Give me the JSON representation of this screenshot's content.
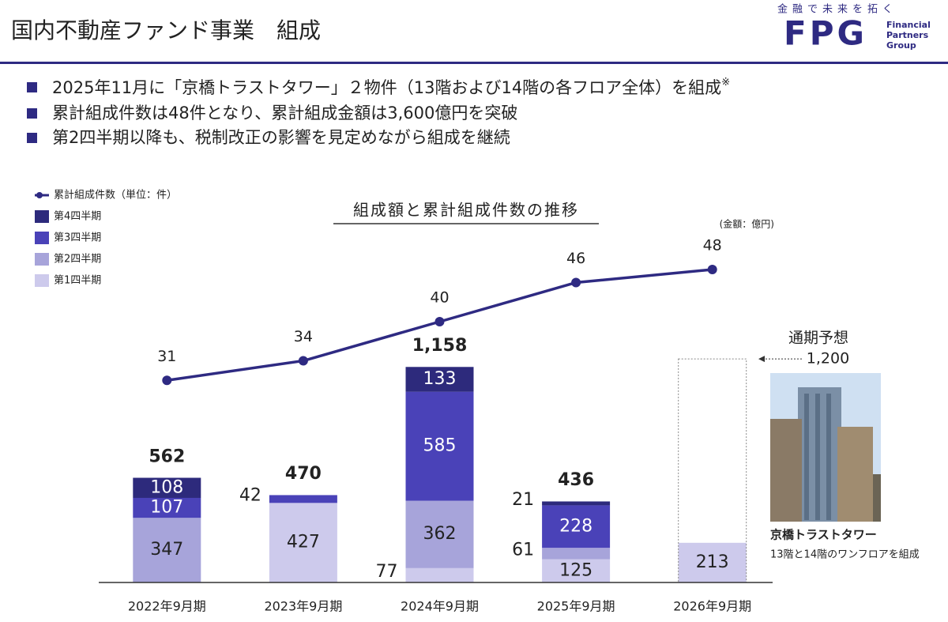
{
  "header": {
    "title": "国内不動産ファンド事業　組成",
    "logo": {
      "tagline": "金融で未来を拓く",
      "mark": "FPG",
      "name": [
        "Financial",
        "Partners",
        "Group"
      ]
    }
  },
  "bullets": [
    {
      "text": "2025年11月に「京橋トラストタワー」２物件（13階および14階の各フロア全体）を組成",
      "note": "※"
    },
    {
      "text": "累計組成件数は48件となり、累計組成金額は3,600億円を突破"
    },
    {
      "text": "第2四半期以降も、税制改正の影響を見定めながら組成を継続"
    }
  ],
  "photo": {
    "caption": "京橋トラストタワー",
    "subcaption": "13階と14階のワンフロアを組成"
  },
  "chart_data": {
    "type": "bar",
    "stacked": true,
    "title": "組成額と累計組成件数の推移",
    "unit_note": "(金額：億円)",
    "categories": [
      "2022年9月期",
      "2023年9月期",
      "2024年9月期",
      "2025年9月期",
      "2026年9月期"
    ],
    "ylim": [
      0,
      2100
    ],
    "y2lim": [
      0,
      60
    ],
    "grid": false,
    "legend": "upper left",
    "series": [
      {
        "name": "第1四半期",
        "color": "#cdcaec",
        "values": [
          null,
          427,
          77,
          125,
          213
        ]
      },
      {
        "name": "第2四半期",
        "color": "#a7a4da",
        "values": [
          347,
          null,
          362,
          61,
          null
        ]
      },
      {
        "name": "第3四半期",
        "color": "#4a42b8",
        "values": [
          107,
          42,
          585,
          228,
          null
        ]
      },
      {
        "name": "第4四半期",
        "color": "#2d2a7c",
        "values": [
          108,
          null,
          133,
          21,
          null
        ]
      },
      {
        "name": "累計組成件数（単位：件）",
        "type": "line",
        "axis": "y2",
        "color": "#2e2a82",
        "values": [
          31,
          34,
          40,
          46,
          48
        ]
      }
    ],
    "totals": {
      "values": [
        562,
        470,
        1158,
        436
      ],
      "value_labels": [
        "562",
        "470",
        "1,158",
        "436"
      ]
    },
    "forecast": {
      "label": "通期予想",
      "value": 1200,
      "value_label": "1,200"
    }
  }
}
